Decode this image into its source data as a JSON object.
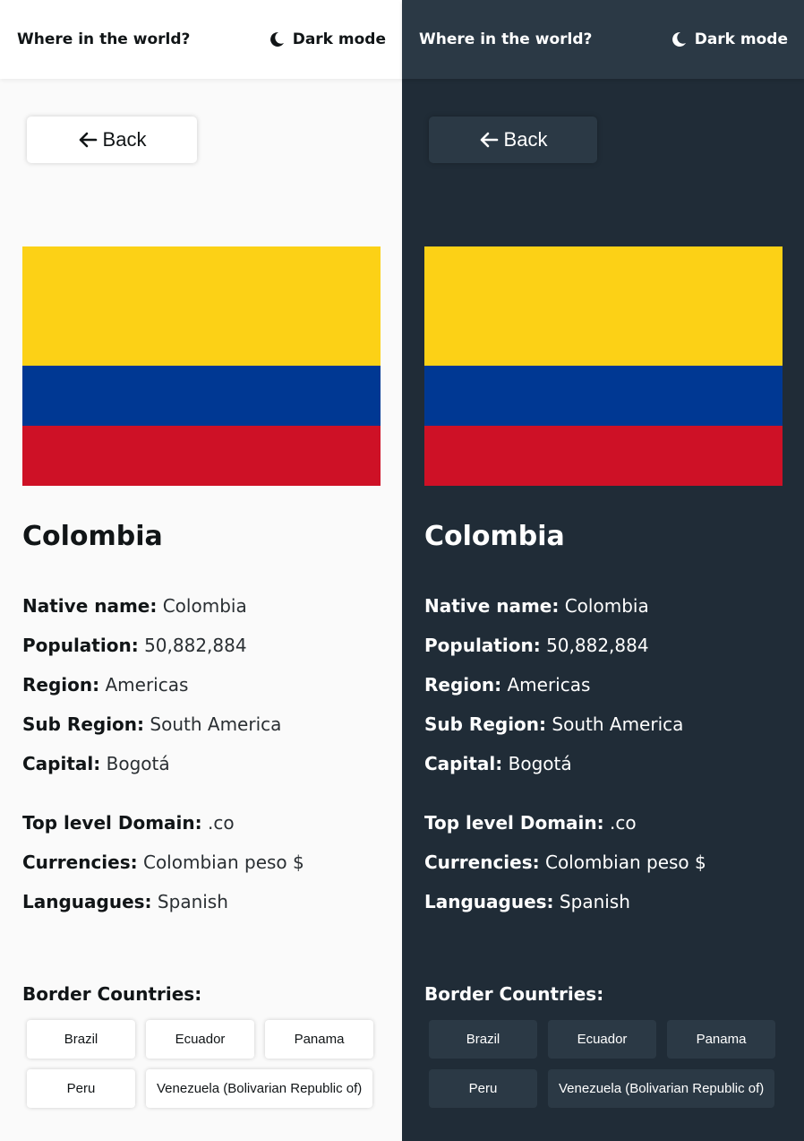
{
  "header": {
    "title": "Where in the world?",
    "mode_label": "Dark mode"
  },
  "back_label": "Back",
  "country": {
    "name": "Colombia",
    "flag_colors": [
      "#fcd116",
      "#003893",
      "#ce1126"
    ],
    "details": [
      {
        "key": "Native name:",
        "value": "Colombia"
      },
      {
        "key": "Population:",
        "value": "50,882,884"
      },
      {
        "key": "Region:",
        "value": "Americas"
      },
      {
        "key": "Sub Region:",
        "value": "South America"
      },
      {
        "key": "Capital:",
        "value": "Bogotá"
      }
    ],
    "extra": [
      {
        "key": "Top level Domain:",
        "value": ".co"
      },
      {
        "key": "Currencies:",
        "value": "Colombian peso $"
      },
      {
        "key": "Languagues:",
        "value": "Spanish"
      }
    ],
    "border_title": "Border Countries:",
    "borders": [
      "Brazil",
      "Ecuador",
      "Panama",
      "Peru",
      "Venezuela (Bolivarian Republic of)"
    ]
  },
  "themes": {
    "light": {
      "bg": "#fafafa",
      "elements": "#ffffff",
      "text": "#111517"
    },
    "dark": {
      "bg": "#202c37",
      "elements": "#2b3945",
      "text": "#ffffff"
    }
  }
}
